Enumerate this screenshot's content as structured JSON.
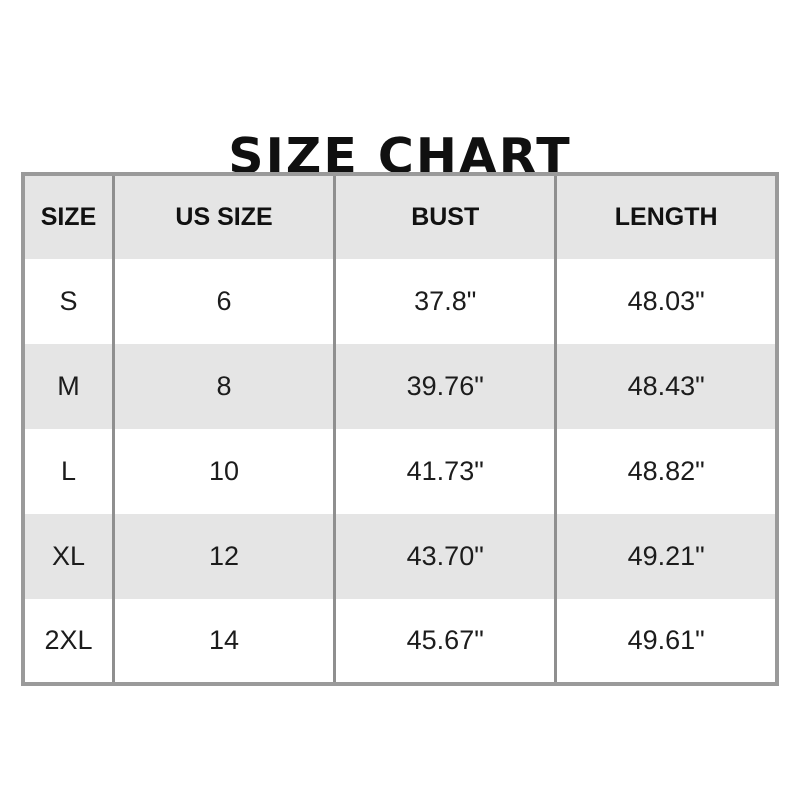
{
  "page": {
    "title": "SIZE CHART"
  },
  "colors": {
    "background": "#ffffff",
    "header_row_bg": "#e5e5e5",
    "stripe_row_bg": "#e5e5e5",
    "table_border": "#9a9a9a",
    "column_divider": "#8f8f8f",
    "text": "#1c1c1c",
    "title_text": "#101010"
  },
  "chart_data": {
    "type": "table",
    "title": "SIZE CHART",
    "columns": [
      "SIZE",
      "US SIZE",
      "BUST",
      "LENGTH"
    ],
    "rows": [
      [
        "S",
        "6",
        "37.8\"",
        "48.03\""
      ],
      [
        "M",
        "8",
        "39.76\"",
        "48.43\""
      ],
      [
        "L",
        "10",
        "41.73\"",
        "48.82\""
      ],
      [
        "XL",
        "12",
        "43.70\"",
        "49.21\""
      ],
      [
        "2XL",
        "14",
        "45.67\"",
        "49.61\""
      ]
    ],
    "layout": {
      "header_background": "gray",
      "row_striping": "alternating white/gray starting white",
      "grid": "outer border + vertical column dividers only",
      "alignment": "all cells centered"
    }
  }
}
